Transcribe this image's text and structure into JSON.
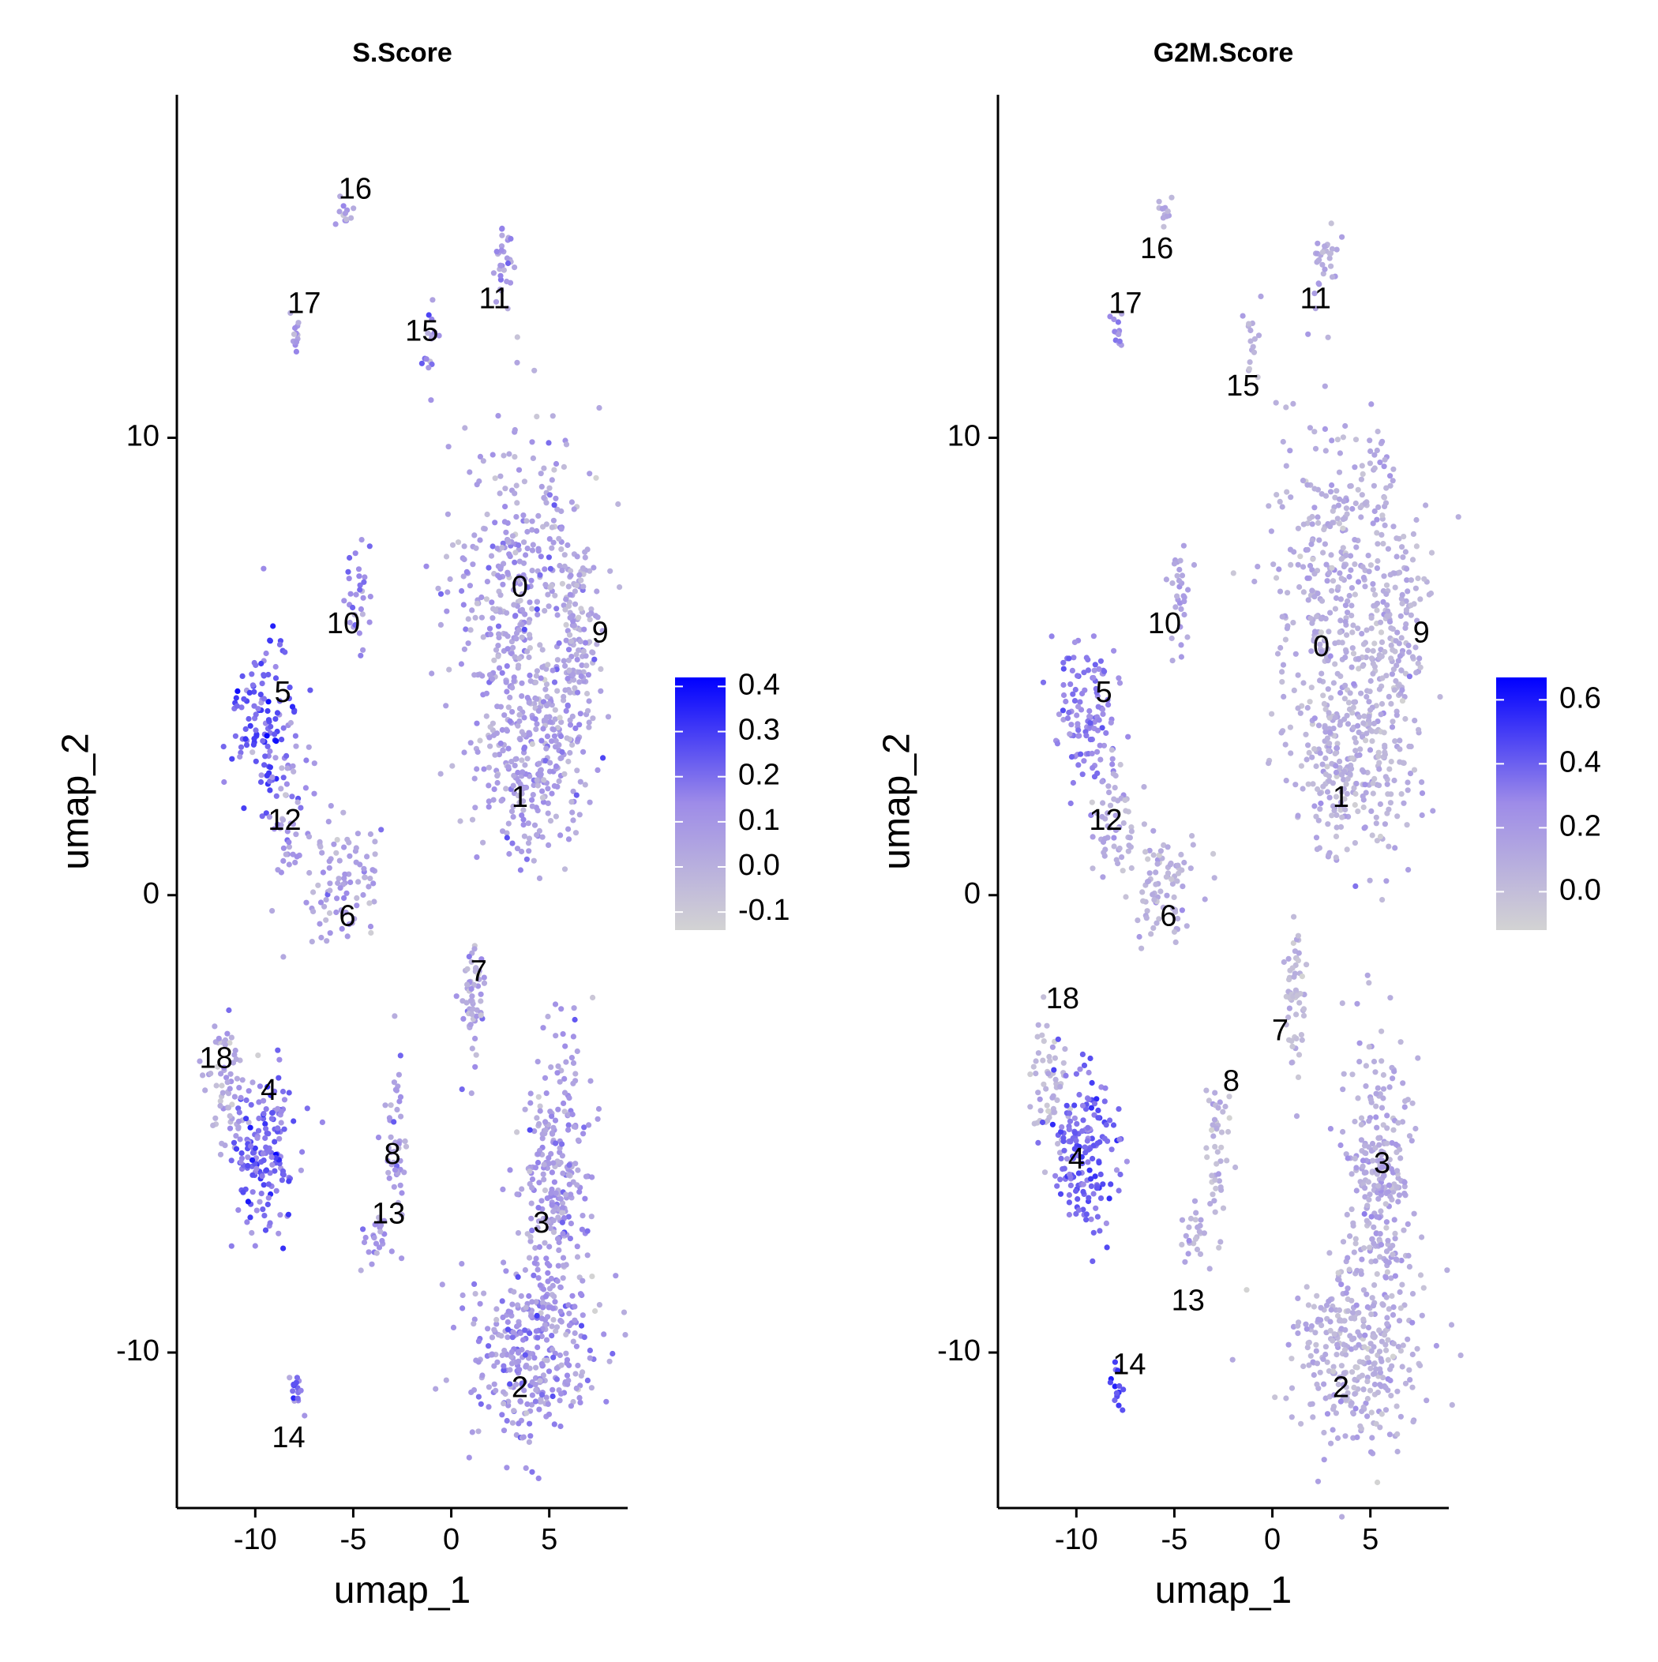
{
  "chart_data": [
    {
      "type": "scatter",
      "title": "S.Score",
      "xlabel": "umap_1",
      "ylabel": "umap_2",
      "xlim": [
        -14,
        9
      ],
      "ylim": [
        -13.4,
        17.5
      ],
      "xticks": [
        -10,
        -5,
        0,
        5
      ],
      "yticks": [
        -10,
        0,
        10
      ],
      "xtick_labels": [
        "-10",
        "-5",
        "0",
        "5"
      ],
      "ytick_labels": [
        "-10",
        "0",
        "10"
      ],
      "colorbar": {
        "min": -0.14,
        "max": 0.42,
        "low_color": "#d3d3d3",
        "high_color": "#0000ff",
        "ticks": [
          0.4,
          0.3,
          0.2,
          0.1,
          0.0,
          -0.1
        ],
        "tick_labels": [
          "0.4",
          "0.3",
          "0.2",
          "0.1",
          "0.0",
          "-0.1"
        ]
      },
      "clusters": [
        {
          "label": "0",
          "cx": 3.6,
          "cy": 6.8,
          "sx": 1.8,
          "sy": 1.8,
          "score": 0.05,
          "n": 380
        },
        {
          "label": "9",
          "cx": 6.5,
          "cy": 5.8,
          "sx": 0.6,
          "sy": 1.0,
          "score": 0.04,
          "n": 90
        },
        {
          "label": "1",
          "cx": 4.2,
          "cy": 3.0,
          "sx": 1.5,
          "sy": 1.1,
          "score": 0.06,
          "n": 300
        },
        {
          "label": "10",
          "cx": -4.8,
          "cy": 6.6,
          "sx": 0.3,
          "sy": 0.6,
          "score": 0.13,
          "n": 30
        },
        {
          "label": "5",
          "cx": -9.6,
          "cy": 3.9,
          "sx": 0.8,
          "sy": 0.9,
          "score": 0.24,
          "n": 120
        },
        {
          "label": "12",
          "cx": -8.2,
          "cy": 1.8,
          "sx": 0.6,
          "sy": 0.8,
          "score": 0.08,
          "n": 50
        },
        {
          "label": "6",
          "cx": -5.6,
          "cy": 0.3,
          "sx": 1.0,
          "sy": 0.7,
          "score": 0.05,
          "n": 90
        },
        {
          "label": "7",
          "cx": 1.1,
          "cy": -2.2,
          "sx": 0.3,
          "sy": 0.8,
          "score": 0.03,
          "n": 60
        },
        {
          "label": "18",
          "cx": -11.4,
          "cy": -4.2,
          "sx": 0.6,
          "sy": 0.7,
          "score": 0.02,
          "n": 60
        },
        {
          "label": "4",
          "cx": -9.6,
          "cy": -5.6,
          "sx": 0.8,
          "sy": 0.9,
          "score": 0.2,
          "n": 170
        },
        {
          "label": "8",
          "cx": -2.8,
          "cy": -5.6,
          "sx": 0.3,
          "sy": 0.9,
          "score": 0.06,
          "n": 45
        },
        {
          "label": "13",
          "cx": -3.8,
          "cy": -7.4,
          "sx": 0.4,
          "sy": 0.4,
          "score": 0.1,
          "n": 25
        },
        {
          "label": "3",
          "cx": 5.4,
          "cy": -6.2,
          "sx": 0.9,
          "sy": 1.6,
          "score": 0.07,
          "n": 260
        },
        {
          "label": "2",
          "cx": 4.2,
          "cy": -10.0,
          "sx": 1.6,
          "sy": 1.0,
          "score": 0.09,
          "n": 330
        },
        {
          "label": "14",
          "cx": -7.9,
          "cy": -10.7,
          "sx": 0.15,
          "sy": 0.3,
          "score": 0.18,
          "n": 15
        },
        {
          "label": "16",
          "cx": -5.4,
          "cy": 14.9,
          "sx": 0.2,
          "sy": 0.15,
          "score": 0.06,
          "n": 12
        },
        {
          "label": "17",
          "cx": -7.9,
          "cy": 12.3,
          "sx": 0.15,
          "sy": 0.3,
          "score": 0.09,
          "n": 14
        },
        {
          "label": "11",
          "cx": 2.7,
          "cy": 13.8,
          "sx": 0.3,
          "sy": 0.4,
          "score": 0.06,
          "n": 30
        },
        {
          "label": "15",
          "cx": -1.0,
          "cy": 11.9,
          "sx": 0.2,
          "sy": 0.5,
          "score": 0.09,
          "n": 16
        }
      ],
      "cluster_labels": [
        {
          "label": "0",
          "x": 3.5,
          "y": 6.7
        },
        {
          "label": "9",
          "x": 7.6,
          "y": 5.7
        },
        {
          "label": "1",
          "x": 3.5,
          "y": 2.1
        },
        {
          "label": "10",
          "x": -5.5,
          "y": 5.9
        },
        {
          "label": "5",
          "x": -8.6,
          "y": 4.4
        },
        {
          "label": "12",
          "x": -8.5,
          "y": 1.6
        },
        {
          "label": "6",
          "x": -5.3,
          "y": -0.5
        },
        {
          "label": "7",
          "x": 1.4,
          "y": -1.7
        },
        {
          "label": "18",
          "x": -12.0,
          "y": -3.6
        },
        {
          "label": "4",
          "x": -9.3,
          "y": -4.3
        },
        {
          "label": "8",
          "x": -3.0,
          "y": -5.7
        },
        {
          "label": "13",
          "x": -3.2,
          "y": -7.0
        },
        {
          "label": "3",
          "x": 4.6,
          "y": -7.2
        },
        {
          "label": "2",
          "x": 3.5,
          "y": -10.8
        },
        {
          "label": "14",
          "x": -8.3,
          "y": -11.9
        },
        {
          "label": "16",
          "x": -4.9,
          "y": 15.4
        },
        {
          "label": "17",
          "x": -7.5,
          "y": 12.9
        },
        {
          "label": "11",
          "x": 2.2,
          "y": 13.0
        },
        {
          "label": "15",
          "x": -1.5,
          "y": 12.3
        }
      ]
    },
    {
      "type": "scatter",
      "title": "G2M.Score",
      "xlabel": "umap_1",
      "ylabel": "umap_2",
      "xlim": [
        -14,
        9
      ],
      "ylim": [
        -13.4,
        17.5
      ],
      "xticks": [
        -10,
        -5,
        0,
        5
      ],
      "yticks": [
        -10,
        0,
        10
      ],
      "xtick_labels": [
        "-10",
        "-5",
        "0",
        "5"
      ],
      "ytick_labels": [
        "-10",
        "0",
        "10"
      ],
      "colorbar": {
        "min": -0.12,
        "max": 0.67,
        "low_color": "#d3d3d3",
        "high_color": "#0000ff",
        "ticks": [
          0.6,
          0.4,
          0.2,
          0.0
        ],
        "tick_labels": [
          "0.6",
          "0.4",
          "0.2",
          "0.0"
        ]
      },
      "clusters": [
        {
          "label": "0",
          "cx": 3.6,
          "cy": 6.8,
          "sx": 1.8,
          "sy": 1.8,
          "score": 0.08,
          "n": 380
        },
        {
          "label": "9",
          "cx": 6.5,
          "cy": 5.8,
          "sx": 0.6,
          "sy": 1.0,
          "score": 0.06,
          "n": 90
        },
        {
          "label": "1",
          "cx": 4.2,
          "cy": 3.0,
          "sx": 1.5,
          "sy": 1.1,
          "score": 0.07,
          "n": 300
        },
        {
          "label": "10",
          "cx": -4.8,
          "cy": 6.6,
          "sx": 0.3,
          "sy": 0.6,
          "score": 0.15,
          "n": 30
        },
        {
          "label": "5",
          "cx": -9.6,
          "cy": 3.9,
          "sx": 0.8,
          "sy": 0.9,
          "score": 0.3,
          "n": 120
        },
        {
          "label": "12",
          "cx": -8.2,
          "cy": 1.8,
          "sx": 0.6,
          "sy": 0.8,
          "score": 0.1,
          "n": 50
        },
        {
          "label": "6",
          "cx": -5.6,
          "cy": 0.3,
          "sx": 1.0,
          "sy": 0.7,
          "score": 0.06,
          "n": 90
        },
        {
          "label": "7",
          "cx": 1.1,
          "cy": -2.2,
          "sx": 0.3,
          "sy": 0.8,
          "score": 0.03,
          "n": 60
        },
        {
          "label": "18",
          "cx": -11.4,
          "cy": -4.2,
          "sx": 0.6,
          "sy": 0.7,
          "score": 0.02,
          "n": 60
        },
        {
          "label": "4",
          "cx": -9.6,
          "cy": -5.6,
          "sx": 0.8,
          "sy": 0.9,
          "score": 0.38,
          "n": 170
        },
        {
          "label": "8",
          "cx": -2.8,
          "cy": -5.6,
          "sx": 0.3,
          "sy": 0.9,
          "score": 0.05,
          "n": 45
        },
        {
          "label": "13",
          "cx": -3.8,
          "cy": -7.4,
          "sx": 0.4,
          "sy": 0.4,
          "score": 0.08,
          "n": 25
        },
        {
          "label": "3",
          "cx": 5.4,
          "cy": -6.2,
          "sx": 0.9,
          "sy": 1.6,
          "score": 0.1,
          "n": 260
        },
        {
          "label": "2",
          "cx": 4.2,
          "cy": -10.0,
          "sx": 1.6,
          "sy": 1.0,
          "score": 0.07,
          "n": 330
        },
        {
          "label": "14",
          "cx": -7.9,
          "cy": -10.7,
          "sx": 0.15,
          "sy": 0.3,
          "score": 0.45,
          "n": 15
        },
        {
          "label": "16",
          "cx": -5.4,
          "cy": 14.9,
          "sx": 0.2,
          "sy": 0.15,
          "score": 0.08,
          "n": 12
        },
        {
          "label": "17",
          "cx": -7.9,
          "cy": 12.3,
          "sx": 0.15,
          "sy": 0.3,
          "score": 0.22,
          "n": 14
        },
        {
          "label": "11",
          "cx": 2.7,
          "cy": 13.8,
          "sx": 0.3,
          "sy": 0.4,
          "score": 0.1,
          "n": 30
        },
        {
          "label": "15",
          "cx": -1.0,
          "cy": 11.9,
          "sx": 0.2,
          "sy": 0.5,
          "score": 0.06,
          "n": 16
        }
      ],
      "cluster_labels": [
        {
          "label": "0",
          "x": 2.5,
          "y": 5.4
        },
        {
          "label": "9",
          "x": 7.6,
          "y": 5.7
        },
        {
          "label": "1",
          "x": 3.5,
          "y": 2.1
        },
        {
          "label": "10",
          "x": -5.5,
          "y": 5.9
        },
        {
          "label": "5",
          "x": -8.6,
          "y": 4.4
        },
        {
          "label": "12",
          "x": -8.5,
          "y": 1.6
        },
        {
          "label": "6",
          "x": -5.3,
          "y": -0.5
        },
        {
          "label": "7",
          "x": 0.4,
          "y": -3.0
        },
        {
          "label": "18",
          "x": -10.7,
          "y": -2.3
        },
        {
          "label": "4",
          "x": -10.0,
          "y": -5.8
        },
        {
          "label": "8",
          "x": -2.1,
          "y": -4.1
        },
        {
          "label": "13",
          "x": -4.3,
          "y": -8.9
        },
        {
          "label": "3",
          "x": 5.6,
          "y": -5.9
        },
        {
          "label": "2",
          "x": 3.5,
          "y": -10.8
        },
        {
          "label": "14",
          "x": -7.3,
          "y": -10.3
        },
        {
          "label": "16",
          "x": -5.9,
          "y": 14.1
        },
        {
          "label": "17",
          "x": -7.5,
          "y": 12.9
        },
        {
          "label": "11",
          "x": 2.2,
          "y": 13.0
        },
        {
          "label": "15",
          "x": -1.5,
          "y": 11.1
        }
      ]
    }
  ]
}
